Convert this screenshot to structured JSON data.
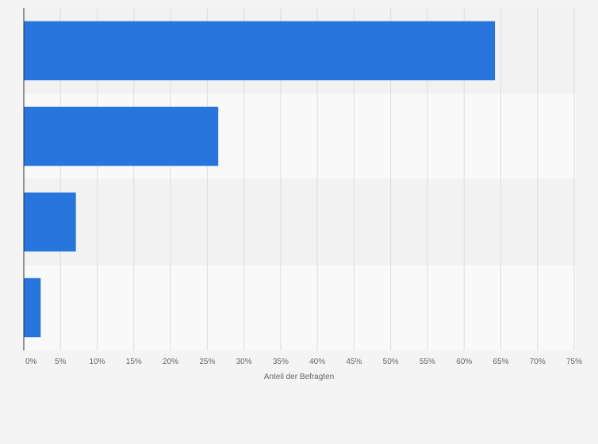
{
  "chart_data": {
    "type": "bar",
    "orientation": "horizontal",
    "categories": [
      "",
      "",
      "",
      ""
    ],
    "values": [
      64.2,
      26.5,
      7.1,
      2.3
    ],
    "unit": "%",
    "xlabel": "Anteil der Befragten",
    "ylabel": "",
    "xlim": [
      0,
      75
    ],
    "xticks": [
      0,
      5,
      10,
      15,
      20,
      25,
      30,
      35,
      40,
      45,
      50,
      55,
      60,
      65,
      70,
      75
    ],
    "xtick_labels": [
      "0%",
      "5%",
      "10%",
      "15%",
      "20%",
      "25%",
      "30%",
      "35%",
      "40%",
      "45%",
      "50%",
      "55%",
      "60%",
      "65%",
      "70%",
      "75%"
    ],
    "grid": true,
    "legend": "none",
    "colors": {
      "bar": "#2876dd",
      "band_dark": "#f2f2f2",
      "band_light": "#f9f9f9",
      "gridline": "#dddddd",
      "axis": "#333333",
      "text": "#666666",
      "background": "#f4f4f4"
    }
  }
}
